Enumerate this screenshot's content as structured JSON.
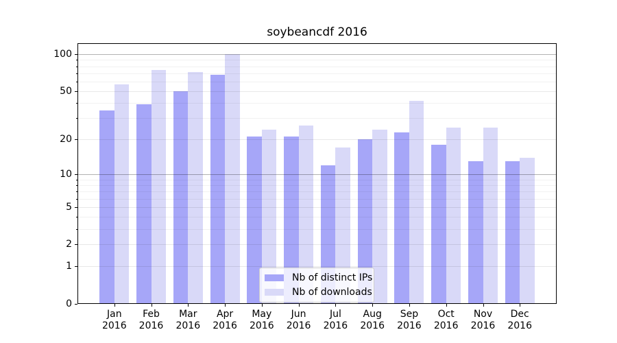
{
  "chart_data": {
    "type": "bar",
    "title": "soybeancdf 2016",
    "categories": [
      "Jan 2016",
      "Feb 2016",
      "Mar 2016",
      "Apr 2016",
      "May 2016",
      "Jun 2016",
      "Jul 2016",
      "Aug 2016",
      "Sep 2016",
      "Oct 2016",
      "Nov 2016",
      "Dec 2016"
    ],
    "series": [
      {
        "name": "Nb of distinct IPs",
        "color": "#a6a6f8",
        "values": [
          35,
          39,
          50,
          68,
          21,
          21,
          12,
          20,
          23,
          18,
          13,
          13
        ]
      },
      {
        "name": "Nb of downloads",
        "color": "#d9d9f8",
        "values": [
          57,
          75,
          72,
          100,
          24,
          26,
          17,
          24,
          42,
          25,
          25,
          14
        ]
      }
    ],
    "xlabel": "",
    "ylabel": "",
    "y_axis": {
      "scale": "log1p",
      "ticks": [
        100,
        50,
        20,
        10,
        5,
        2,
        1,
        0
      ],
      "minor_gridlines": [
        3,
        4,
        6,
        7,
        8,
        9,
        30,
        40,
        60,
        70,
        80,
        90
      ],
      "dark_gridlines": [
        10,
        100
      ],
      "ylim": [
        0,
        123
      ]
    },
    "legend": {
      "position": "lower center"
    },
    "grid": true
  }
}
